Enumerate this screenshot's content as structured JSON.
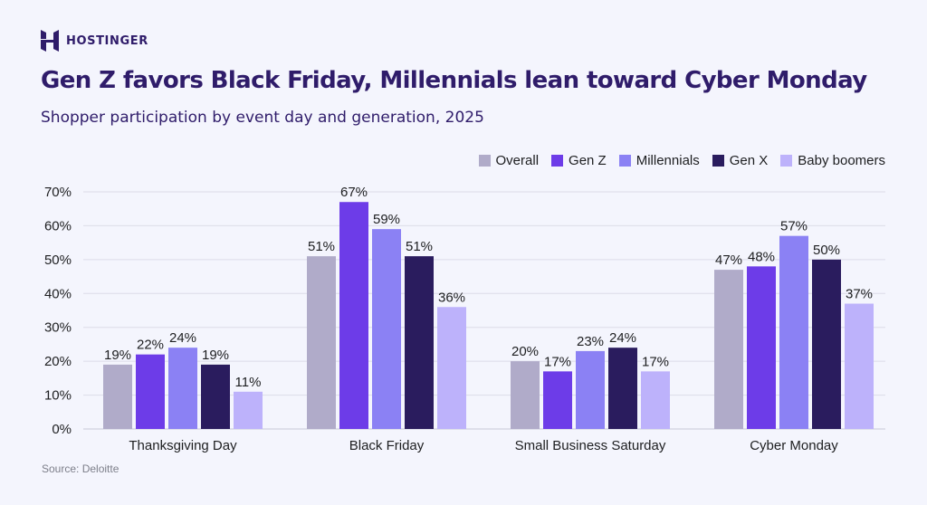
{
  "brand": {
    "name": "HOSTINGER",
    "logo_icon": "hostinger-logo-icon"
  },
  "title": "Gen Z favors Black Friday, Millennials lean toward Cyber Monday",
  "subtitle": "Shopper participation by event day and generation, 2025",
  "source": "Source: Deloitte",
  "colors": {
    "background": "#f4f5fd",
    "title": "#2f1c6a",
    "gridline": "#dcdce8"
  },
  "chart_data": {
    "type": "bar",
    "categories": [
      "Thanksgiving Day",
      "Black Friday",
      "Small Business Saturday",
      "Cyber Monday"
    ],
    "series": [
      {
        "name": "Overall",
        "color": "#b0abc9",
        "values": [
          19,
          51,
          20,
          47
        ]
      },
      {
        "name": "Gen Z",
        "color": "#6d3ce8",
        "values": [
          22,
          67,
          17,
          48
        ]
      },
      {
        "name": "Millennials",
        "color": "#8b81f4",
        "values": [
          24,
          59,
          23,
          57
        ]
      },
      {
        "name": "Gen X",
        "color": "#2a1c5e",
        "values": [
          19,
          51,
          24,
          50
        ]
      },
      {
        "name": "Baby boomers",
        "color": "#bdb2fb",
        "values": [
          11,
          36,
          17,
          37
        ]
      }
    ],
    "y_ticks": [
      "0%",
      "10%",
      "20%",
      "30%",
      "40%",
      "50%",
      "60%",
      "70%"
    ],
    "ylim": [
      0,
      70
    ],
    "value_suffix": "%",
    "grid": true,
    "legend_position": "top-right"
  }
}
